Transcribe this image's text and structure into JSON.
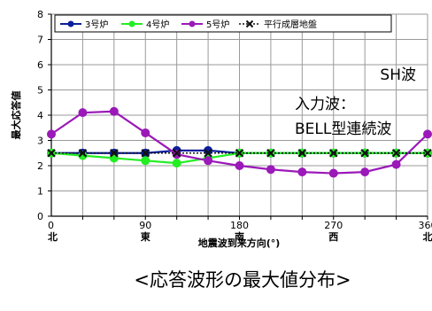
{
  "chart_data": {
    "type": "line",
    "title": "",
    "xlabel": "地震波到来方向(°)",
    "ylabel": "最大応答値",
    "xlim": [
      0,
      360
    ],
    "ylim": [
      0,
      8
    ],
    "xticks": [
      0,
      90,
      180,
      270,
      360
    ],
    "direction_labels": [
      "北",
      "東",
      "南",
      "西",
      "北"
    ],
    "yticks": [
      0,
      1,
      2,
      3,
      4,
      5,
      6,
      7,
      8
    ],
    "grid": true,
    "legend_position": "top",
    "x": [
      0,
      30,
      60,
      90,
      120,
      150,
      180,
      210,
      240,
      270,
      300,
      330,
      360
    ],
    "series": [
      {
        "name": "3号炉",
        "color": "#0b1f9c",
        "marker": "circle",
        "style": "solid",
        "values": [
          2.5,
          2.5,
          2.5,
          2.5,
          2.6,
          2.6,
          2.5,
          2.5,
          2.5,
          2.5,
          2.5,
          2.5,
          2.5
        ]
      },
      {
        "name": "4号炉",
        "color": "#22ee22",
        "marker": "circle",
        "style": "solid",
        "values": [
          2.5,
          2.4,
          2.3,
          2.2,
          2.1,
          2.3,
          2.5,
          2.5,
          2.5,
          2.5,
          2.5,
          2.5,
          2.5
        ]
      },
      {
        "name": "5号炉",
        "color": "#9b19b8",
        "marker": "circle",
        "style": "solid",
        "values": [
          3.25,
          4.1,
          4.15,
          3.3,
          2.45,
          2.2,
          2.0,
          1.85,
          1.75,
          1.7,
          1.75,
          2.05,
          3.25
        ]
      },
      {
        "name": "平行成層地盤",
        "color": "#111111",
        "marker": "x",
        "style": "dotted",
        "values": [
          2.5,
          2.5,
          2.5,
          2.5,
          2.5,
          2.5,
          2.5,
          2.5,
          2.5,
          2.5,
          2.5,
          2.5,
          2.5
        ]
      }
    ],
    "annotations": [
      "SH波",
      "入力波：",
      "BELL型連続波"
    ]
  },
  "caption": "<応答波形の最大値分布>"
}
